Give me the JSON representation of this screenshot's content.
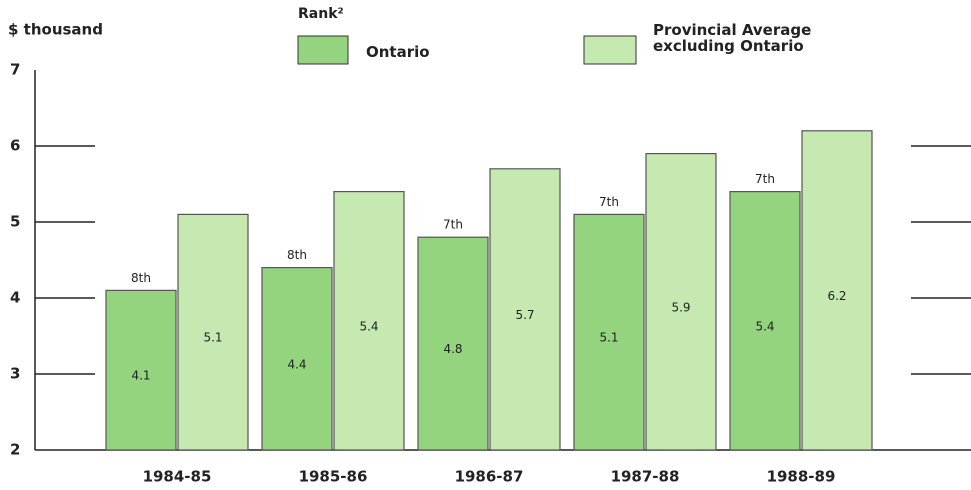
{
  "chart_data": {
    "type": "bar",
    "ylabel": "$ thousand",
    "rank_title": "Rank²",
    "categories": [
      "1984-85",
      "1985-86",
      "1986-87",
      "1987-88",
      "1988-89"
    ],
    "series": [
      {
        "name": "Ontario",
        "color": "#94d47e",
        "values": [
          4.1,
          4.4,
          4.8,
          5.1,
          5.4
        ]
      },
      {
        "name": "Provincial Average excluding Ontario",
        "color": "#c6e9b2",
        "values": [
          5.1,
          5.4,
          5.7,
          5.9,
          6.2
        ]
      }
    ],
    "rank_labels": [
      "8th",
      "8th",
      "7th",
      "7th",
      "7th"
    ],
    "ylim": [
      2,
      7
    ],
    "yticks": [
      2,
      3,
      4,
      5,
      6,
      7
    ],
    "grid": true
  }
}
